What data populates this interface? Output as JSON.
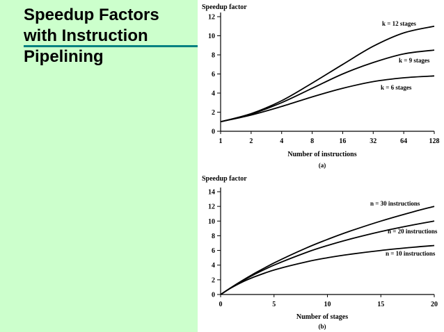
{
  "slide": {
    "title_lines": [
      "Speedup Factors",
      "with Instruction",
      "Pipelining"
    ],
    "colors": {
      "panel": "#ccffcc",
      "accent_bar": "#008080"
    }
  },
  "chart_data": [
    {
      "type": "line",
      "caption": "(a)",
      "ylabel": "Speedup factor",
      "xlabel": "Number of instructions",
      "x_scale": "log2",
      "x_ticks": [
        1,
        2,
        4,
        8,
        16,
        32,
        64,
        128
      ],
      "y_ticks": [
        0,
        2,
        4,
        6,
        8,
        10,
        12
      ],
      "xlim": [
        1,
        128
      ],
      "ylim": [
        0,
        12
      ],
      "grid": false,
      "series": [
        {
          "name": "k = 12 stages",
          "x": [
            1,
            2,
            4,
            8,
            16,
            32,
            64,
            128
          ],
          "y": [
            1.0,
            1.85,
            3.2,
            5.05,
            7.0,
            8.9,
            10.3,
            11.0
          ]
        },
        {
          "name": "k = 9 stages",
          "x": [
            1,
            2,
            4,
            8,
            16,
            32,
            64,
            128
          ],
          "y": [
            1.0,
            1.8,
            3.0,
            4.5,
            6.0,
            7.2,
            8.1,
            8.5
          ]
        },
        {
          "name": "k = 6 stages",
          "x": [
            1,
            2,
            4,
            8,
            16,
            32,
            64,
            128
          ],
          "y": [
            1.0,
            1.7,
            2.6,
            3.6,
            4.5,
            5.2,
            5.6,
            5.8
          ]
        }
      ]
    },
    {
      "type": "line",
      "caption": "(b)",
      "ylabel": "Speedup factor",
      "xlabel": "Number of stages",
      "x_scale": "linear",
      "x_ticks": [
        0,
        5,
        10,
        15,
        20
      ],
      "y_ticks": [
        0,
        2,
        4,
        6,
        8,
        10,
        12,
        14
      ],
      "xlim": [
        0,
        20
      ],
      "ylim": [
        0,
        14
      ],
      "grid": false,
      "series": [
        {
          "name": "n = 30 instructions",
          "x": [
            0,
            1,
            2,
            3,
            5,
            8,
            10,
            12,
            15,
            18,
            20
          ],
          "y": [
            0,
            0.97,
            1.88,
            2.73,
            4.29,
            6.32,
            7.5,
            8.57,
            10.0,
            11.25,
            12.0
          ]
        },
        {
          "name": "n = 20 instructions",
          "x": [
            0,
            1,
            2,
            3,
            5,
            8,
            10,
            12,
            15,
            18,
            20
          ],
          "y": [
            0,
            0.95,
            1.82,
            2.61,
            4.0,
            5.71,
            6.67,
            7.5,
            8.57,
            9.47,
            10.0
          ]
        },
        {
          "name": "n = 10 instructions",
          "x": [
            0,
            1,
            2,
            3,
            5,
            8,
            10,
            12,
            15,
            18,
            20
          ],
          "y": [
            0,
            0.91,
            1.67,
            2.31,
            3.33,
            4.44,
            5.0,
            5.45,
            6.0,
            6.43,
            6.67
          ]
        }
      ]
    }
  ]
}
